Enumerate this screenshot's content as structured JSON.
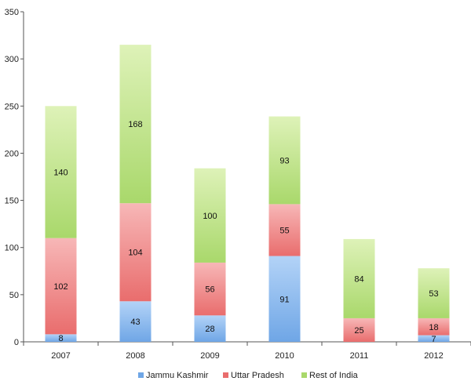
{
  "chart_data": {
    "type": "bar",
    "stacked": true,
    "categories": [
      "2007",
      "2008",
      "2009",
      "2010",
      "2011",
      "2012"
    ],
    "series": [
      {
        "name": "Jammu Kashmir",
        "values": [
          8,
          43,
          28,
          91,
          0,
          7
        ],
        "color": "#6fa6e6",
        "color_light": "#b3d3f7"
      },
      {
        "name": "Uttar Pradesh",
        "values": [
          102,
          104,
          56,
          55,
          25,
          18
        ],
        "color": "#e96d6d",
        "color_light": "#f7b7b7"
      },
      {
        "name": "Rest of India",
        "values": [
          140,
          168,
          100,
          93,
          84,
          53
        ],
        "color": "#a9d86b",
        "color_light": "#def2b8"
      }
    ],
    "y_ticks": [
      "0",
      "50",
      "100",
      "150",
      "200",
      "250",
      "300",
      "350"
    ],
    "ylim": [
      0,
      350
    ],
    "grid": false,
    "legend_position": "bottom"
  }
}
